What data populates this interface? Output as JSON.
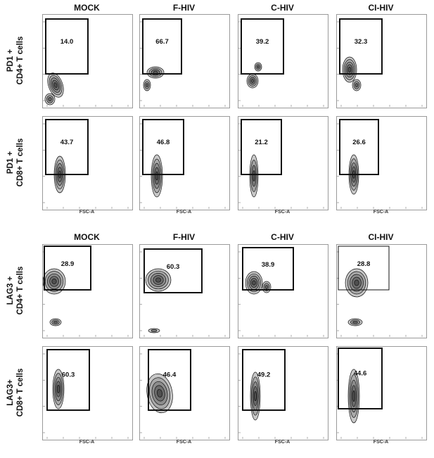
{
  "groups": [
    {
      "columns": [
        "MOCK",
        "F-HIV",
        "C-HIV",
        "CI-HIV"
      ],
      "rows": [
        {
          "label_line1": "PD1 +",
          "label_line2": "CD4+ T cells",
          "values": [
            "14.0",
            "66.7",
            "39.2",
            "32.3"
          ],
          "show_xlabel": false
        },
        {
          "label_line1": "PD1 +",
          "label_line2": "CD8+ T cells",
          "values": [
            "43.7",
            "46.8",
            "21.2",
            "26.6"
          ],
          "show_xlabel": true
        }
      ]
    },
    {
      "columns": [
        "MOCK",
        "F-HIV",
        "C-HIV",
        "CI-HIV"
      ],
      "rows": [
        {
          "label_line1": "LAG3 +",
          "label_line2": "CD4+ T cells",
          "values": [
            "28.9",
            "60.3",
            "38.9",
            "28.8"
          ],
          "show_xlabel": false
        },
        {
          "label_line1": "LAG3+",
          "label_line2": "CD8+ T cells",
          "values": [
            "60.3",
            "46.4",
            "49.2",
            "44.6"
          ],
          "show_xlabel": true
        }
      ]
    }
  ],
  "chart_data": {
    "type": "scatter",
    "title": "",
    "xlabel": "FSC-A",
    "panels": [
      {
        "row": "PD1 + CD4+ T cells",
        "column": "MOCK",
        "gate_percent": 14.0
      },
      {
        "row": "PD1 + CD4+ T cells",
        "column": "F-HIV",
        "gate_percent": 66.7
      },
      {
        "row": "PD1 + CD4+ T cells",
        "column": "C-HIV",
        "gate_percent": 39.2
      },
      {
        "row": "PD1 + CD4+ T cells",
        "column": "CI-HIV",
        "gate_percent": 32.3
      },
      {
        "row": "PD1 + CD8+ T cells",
        "column": "MOCK",
        "gate_percent": 43.7
      },
      {
        "row": "PD1 + CD8+ T cells",
        "column": "F-HIV",
        "gate_percent": 46.8
      },
      {
        "row": "PD1 + CD8+ T cells",
        "column": "C-HIV",
        "gate_percent": 21.2
      },
      {
        "row": "PD1 + CD8+ T cells",
        "column": "CI-HIV",
        "gate_percent": 26.6
      },
      {
        "row": "LAG3 + CD4+ T cells",
        "column": "MOCK",
        "gate_percent": 28.9
      },
      {
        "row": "LAG3 + CD4+ T cells",
        "column": "F-HIV",
        "gate_percent": 60.3
      },
      {
        "row": "LAG3 + CD4+ T cells",
        "column": "C-HIV",
        "gate_percent": 38.9
      },
      {
        "row": "LAG3 + CD4+ T cells",
        "column": "CI-HIV",
        "gate_percent": 28.8
      },
      {
        "row": "LAG3+ CD8+ T cells",
        "column": "MOCK",
        "gate_percent": 60.3
      },
      {
        "row": "LAG3+ CD8+ T cells",
        "column": "F-HIV",
        "gate_percent": 46.4
      },
      {
        "row": "LAG3+ CD8+ T cells",
        "column": "C-HIV",
        "gate_percent": 49.2
      },
      {
        "row": "LAG3+ CD8+ T cells",
        "column": "CI-HIV",
        "gate_percent": 44.6
      }
    ]
  }
}
